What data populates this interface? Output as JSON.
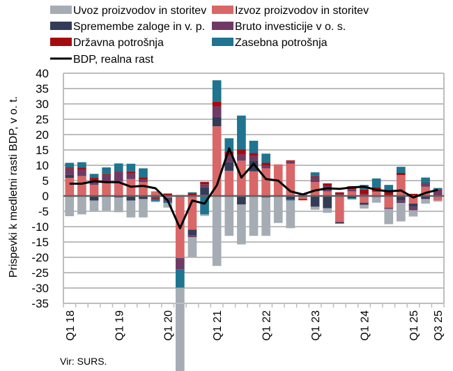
{
  "chart_data": {
    "type": "bar",
    "stacked": true,
    "title": "",
    "ylabel": "Prispevki k medletni rasti BDP, v o. t.",
    "xlabel": "",
    "ylim": [
      -35,
      40
    ],
    "yticks": [
      40,
      35,
      30,
      25,
      20,
      15,
      10,
      5,
      0,
      -5,
      -10,
      -15,
      -20,
      -25,
      -30,
      -35
    ],
    "grid": true,
    "legend_position": "top",
    "categories": [
      "Q1 18",
      "Q2 18",
      "Q3 18",
      "Q4 18",
      "Q1 19",
      "Q2 19",
      "Q3 19",
      "Q4 19",
      "Q1 20",
      "Q2 20",
      "Q3 20",
      "Q4 20",
      "Q1 21",
      "Q2 21",
      "Q3 21",
      "Q4 21",
      "Q1 22",
      "Q2 22",
      "Q3 22",
      "Q4 22",
      "Q1 23",
      "Q2 23",
      "Q3 23",
      "Q4 23",
      "Q1 24",
      "Q2 24",
      "Q3 24",
      "Q4 24",
      "Q1 25",
      "Q2 25",
      "Q3 25"
    ],
    "xtick_labels": [
      {
        "index": 0,
        "label": "Q1 18"
      },
      {
        "index": 4,
        "label": "Q1 19"
      },
      {
        "index": 8,
        "label": "Q1 20"
      },
      {
        "index": 12,
        "label": "Q1 21"
      },
      {
        "index": 16,
        "label": "Q1 22"
      },
      {
        "index": 20,
        "label": "Q1 23"
      },
      {
        "index": 24,
        "label": "Q1 24"
      },
      {
        "index": 28,
        "label": "Q1 25"
      },
      {
        "index": 30,
        "label": "Q3 25"
      }
    ],
    "series": [
      {
        "name": "Uvoz proizvodov in storitev",
        "key": "imports",
        "color": "#a6acb3",
        "values": [
          -6.6,
          -6.0,
          -3.5,
          -4.8,
          -4.8,
          -5.5,
          -6.0,
          -0.3,
          -1.5,
          -29.0,
          -6.5,
          -0.5,
          -22.8,
          -13.0,
          -13.0,
          -13.0,
          -12.5,
          -8.5,
          -9.0,
          0.0,
          -1.0,
          -1.5,
          0.0,
          -0.2,
          -1.2,
          -1.8,
          -5.0,
          -6.0,
          -2.0,
          -1.5,
          -0.3
        ]
      },
      {
        "name": "Izvoz proizvodov in storitev",
        "key": "exports",
        "color": "#d96767",
        "values": [
          5.9,
          6.5,
          3.6,
          4.8,
          4.8,
          5.5,
          4.5,
          1.5,
          -0.6,
          -20.2,
          -11.0,
          0.3,
          22.7,
          8.2,
          11.5,
          8.0,
          9.0,
          10.3,
          10.5,
          -1.0,
          4.5,
          1.5,
          -8.5,
          1.5,
          -2.2,
          1.4,
          -3.8,
          6.8,
          -2.5,
          3.0,
          -1.5
        ]
      },
      {
        "name": "Spremembe zaloge in v. p.",
        "key": "inventories",
        "color": "#333c57",
        "values": [
          1.0,
          0.0,
          -1.5,
          0.0,
          -0.5,
          -1.5,
          -1.0,
          -0.3,
          -0.4,
          -0.2,
          -1.8,
          2.5,
          3.0,
          2.8,
          -2.8,
          3.5,
          -0.5,
          -0.3,
          -1.2,
          0.0,
          -3.5,
          -4.0,
          -0.5,
          -0.7,
          -0.7,
          0.0,
          0.0,
          -1.5,
          -1.0,
          -1.0,
          0.0
        ]
      },
      {
        "name": "Bruto investicije v o. s.",
        "key": "investment",
        "color": "#6f3b66",
        "values": [
          2.0,
          2.0,
          1.5,
          2.0,
          3.0,
          2.0,
          0.8,
          -0.5,
          -0.8,
          -3.5,
          -0.6,
          1.0,
          3.5,
          2.0,
          2.0,
          1.5,
          1.0,
          0.0,
          0.8,
          0.5,
          1.5,
          1.8,
          0.5,
          0.7,
          0.5,
          -0.4,
          -0.4,
          -0.8,
          -1.2,
          1.0,
          1.8
        ]
      },
      {
        "name": "Državna potrošnja",
        "key": "government",
        "color": "#a50c0f",
        "values": [
          0.3,
          0.7,
          0.8,
          0.3,
          0.3,
          0.5,
          0.8,
          -0.3,
          0.8,
          0.3,
          0.8,
          0.8,
          1.5,
          1.5,
          1.7,
          1.0,
          0.8,
          0.0,
          0.3,
          -0.4,
          0.4,
          0.8,
          0.7,
          1.0,
          1.6,
          1.5,
          1.6,
          0.7,
          0.7,
          0.2,
          0.3
        ]
      },
      {
        "name": "Zasebna potrošnja",
        "key": "private",
        "color": "#1f7490",
        "values": [
          1.6,
          1.8,
          1.3,
          2.2,
          2.5,
          2.5,
          2.9,
          -0.6,
          -0.5,
          -6.0,
          0.4,
          -6.0,
          7.0,
          4.3,
          11.0,
          4.0,
          3.0,
          0.0,
          -0.3,
          0.0,
          1.3,
          0.0,
          0.0,
          -0.3,
          1.5,
          2.8,
          2.0,
          2.0,
          0.0,
          1.8,
          0.5
        ]
      }
    ],
    "line": {
      "name": "BDP, realna rast",
      "key": "gdp",
      "color": "#000000",
      "values": [
        4.0,
        4.0,
        4.8,
        4.5,
        4.5,
        3.0,
        3.3,
        2.5,
        -1.5,
        -10.5,
        -1.5,
        -2.5,
        3.5,
        15.5,
        6.0,
        10.5,
        5.5,
        5.0,
        1.5,
        0.5,
        1.8,
        2.5,
        2.3,
        2.8,
        3.0,
        2.0,
        1.5,
        1.8,
        -0.5,
        1.0,
        2.0
      ]
    },
    "source": "Vir: SURS."
  }
}
